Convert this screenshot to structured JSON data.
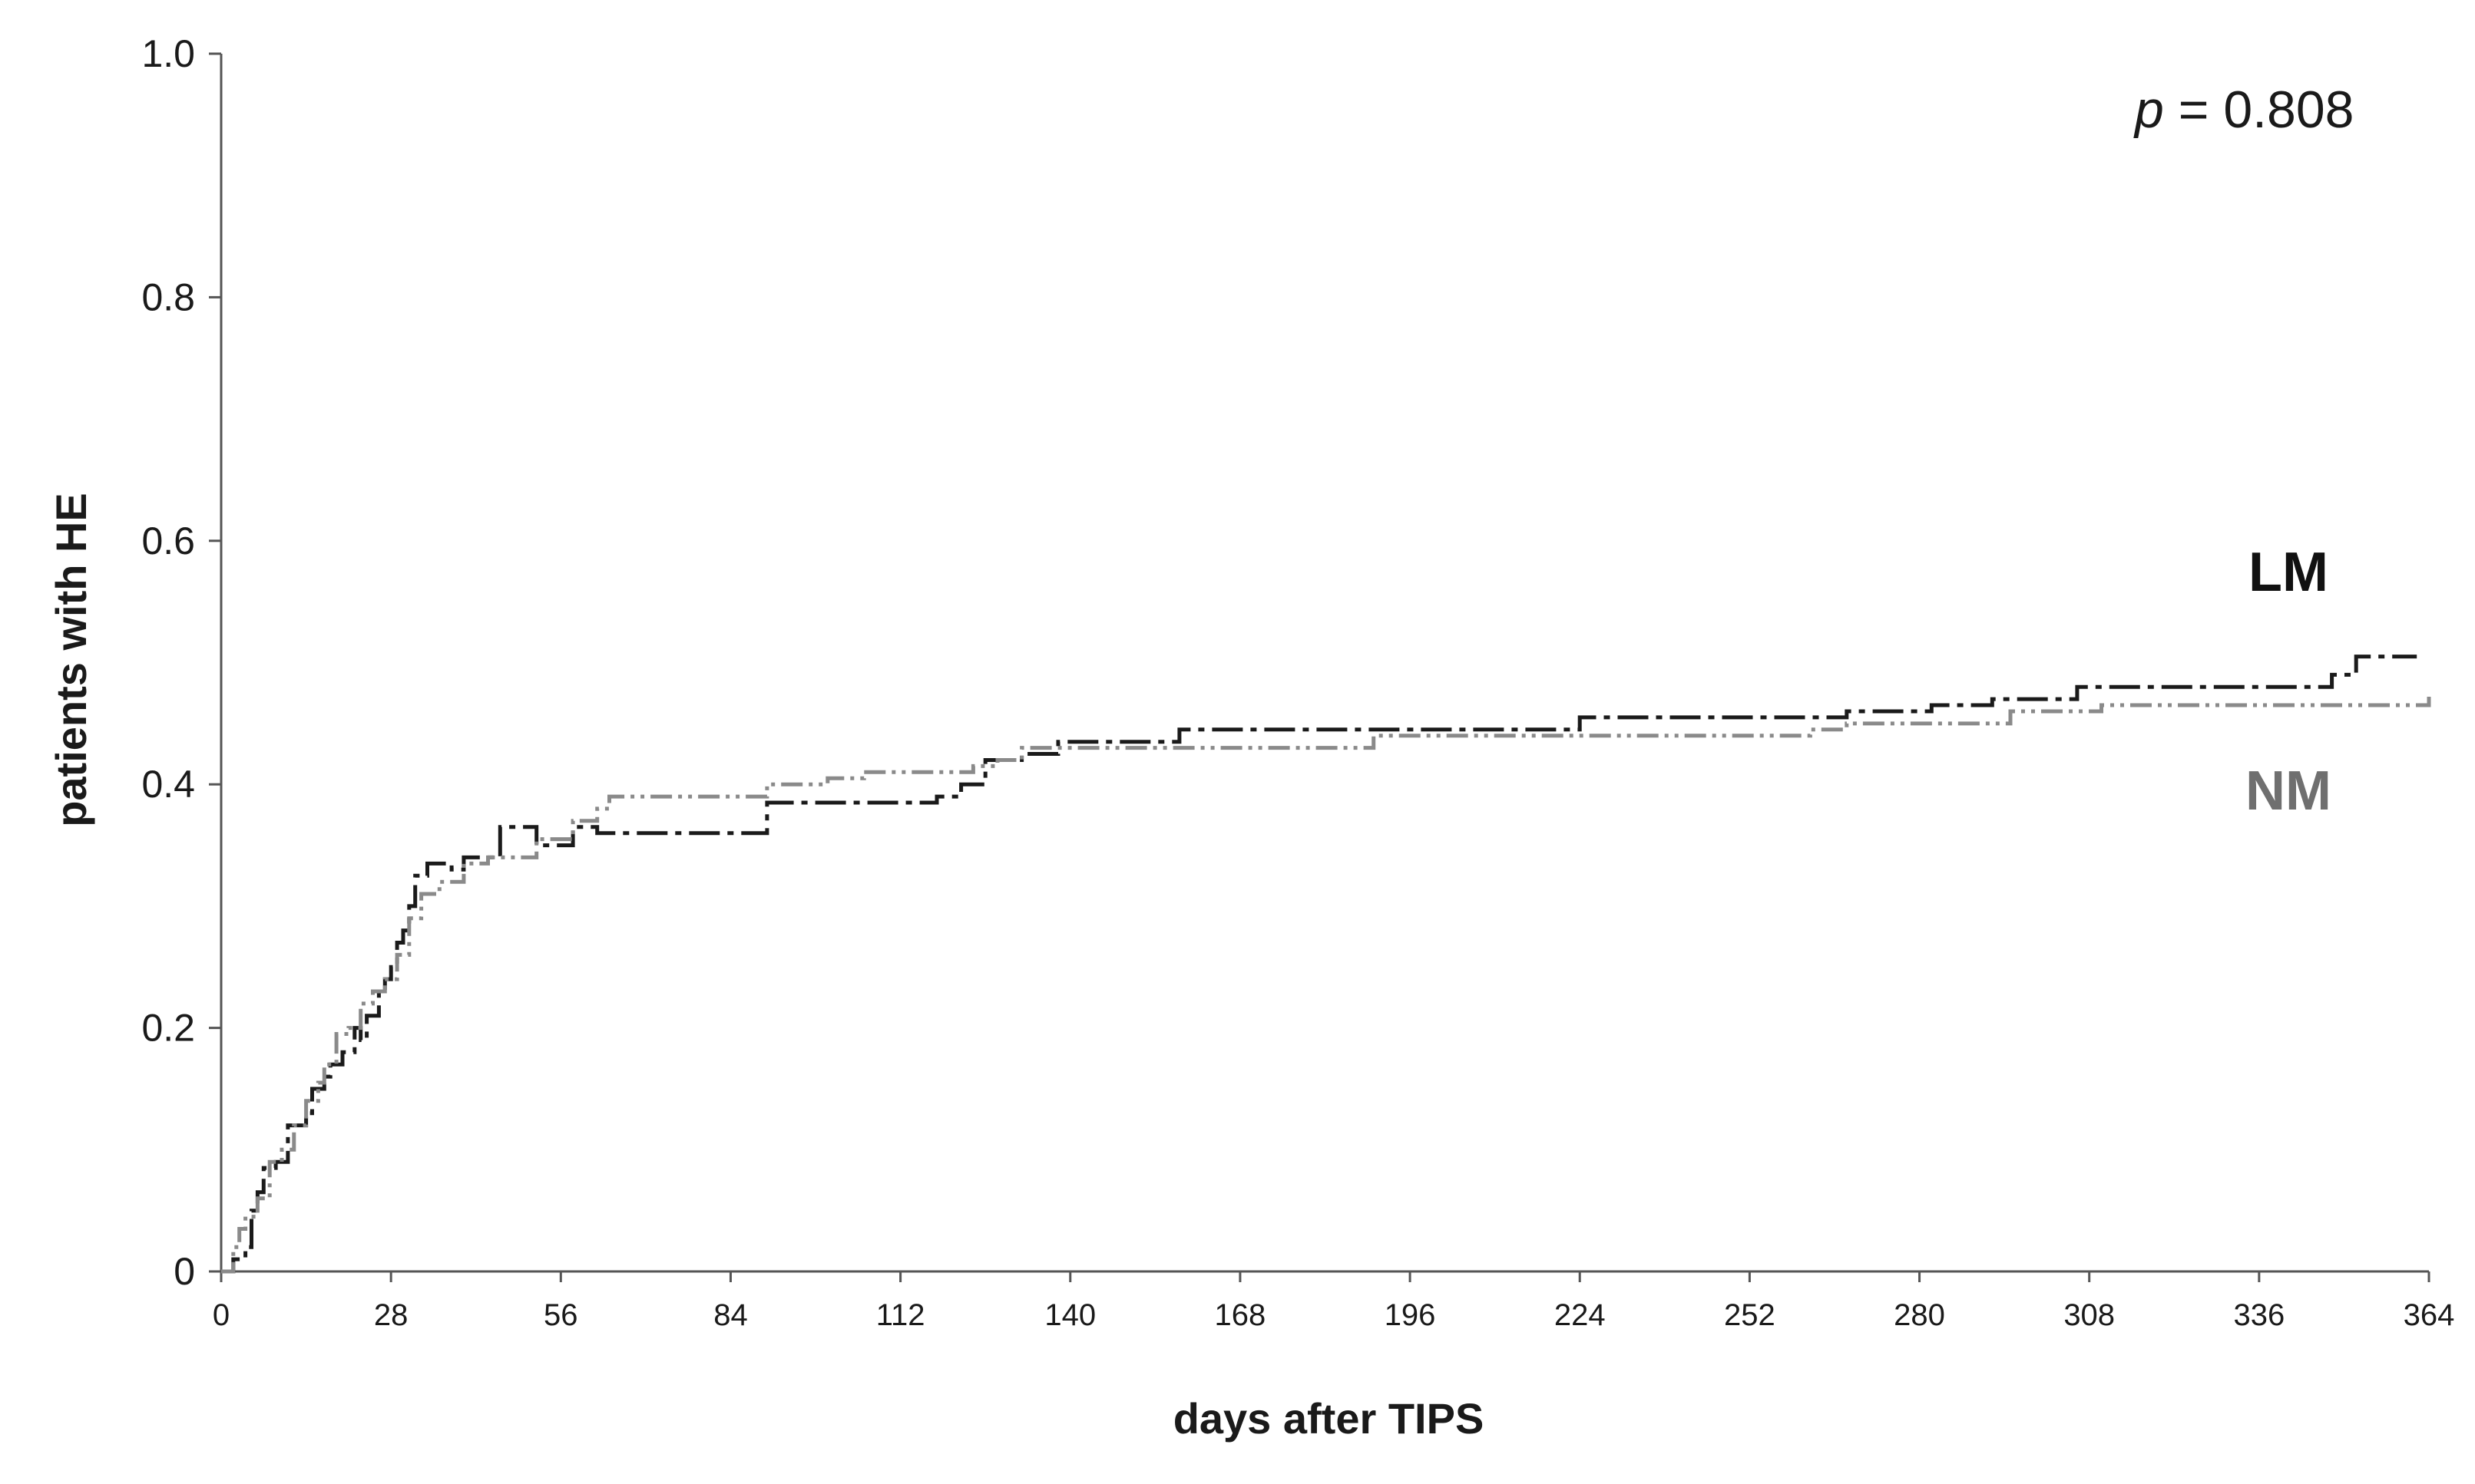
{
  "chart_data": {
    "type": "line",
    "title": "",
    "xlabel": "days after TIPS",
    "ylabel": "patients with HE",
    "xlim": [
      0,
      364
    ],
    "ylim": [
      0,
      1.0
    ],
    "x_ticks": [
      "0",
      "28",
      "56",
      "84",
      "112",
      "140",
      "168",
      "196",
      "224",
      "252",
      "280",
      "308",
      "336",
      "364"
    ],
    "y_ticks": [
      "0",
      "0.2",
      "0.4",
      "0.6",
      "0.8",
      "1.0"
    ],
    "annotation": {
      "italic": "p",
      "rest": " = 0.808"
    },
    "step": true,
    "grid": false,
    "series": [
      {
        "name": "LM",
        "color": "#1a1a1a",
        "line_style": "dash-dot",
        "x": [
          0,
          2,
          4,
          5,
          6,
          7,
          9,
          11,
          12,
          14,
          15,
          17,
          18,
          20,
          22,
          23,
          24,
          26,
          27,
          28,
          29,
          30,
          31,
          32,
          34,
          38,
          40,
          46,
          52,
          58,
          62,
          66,
          72,
          80,
          90,
          104,
          118,
          122,
          126,
          132,
          138,
          150,
          158,
          180,
          210,
          224,
          240,
          268,
          282,
          292,
          300,
          306,
          320,
          335,
          348,
          352,
          362
        ],
        "y": [
          0,
          0.01,
          0.02,
          0.05,
          0.065,
          0.085,
          0.09,
          0.12,
          0.12,
          0.13,
          0.15,
          0.16,
          0.17,
          0.18,
          0.2,
          0.19,
          0.21,
          0.23,
          0.24,
          0.25,
          0.27,
          0.28,
          0.3,
          0.325,
          0.335,
          0.33,
          0.34,
          0.365,
          0.35,
          0.365,
          0.36,
          0.36,
          0.36,
          0.36,
          0.385,
          0.385,
          0.39,
          0.4,
          0.42,
          0.425,
          0.435,
          0.435,
          0.445,
          0.445,
          0.445,
          0.455,
          0.455,
          0.46,
          0.465,
          0.47,
          0.47,
          0.48,
          0.48,
          0.48,
          0.49,
          0.505,
          0.505
        ]
      },
      {
        "name": "NM",
        "color": "#8a8a8a",
        "line_style": "dash-dot-dot",
        "x": [
          0,
          2,
          3,
          4,
          6,
          8,
          10,
          12,
          14,
          16,
          17,
          19,
          21,
          23,
          25,
          27,
          29,
          31,
          33,
          36,
          40,
          44,
          52,
          58,
          62,
          64,
          70,
          90,
          100,
          106,
          124,
          128,
          132,
          140,
          150,
          170,
          190,
          200,
          230,
          262,
          268,
          295,
          310,
          340,
          364
        ],
        "y": [
          0,
          0.02,
          0.035,
          0.045,
          0.06,
          0.09,
          0.1,
          0.12,
          0.14,
          0.155,
          0.17,
          0.195,
          0.2,
          0.22,
          0.23,
          0.24,
          0.26,
          0.29,
          0.31,
          0.32,
          0.335,
          0.34,
          0.355,
          0.37,
          0.38,
          0.39,
          0.39,
          0.4,
          0.405,
          0.41,
          0.415,
          0.42,
          0.43,
          0.43,
          0.43,
          0.43,
          0.44,
          0.44,
          0.44,
          0.445,
          0.45,
          0.46,
          0.465,
          0.465,
          0.475
        ]
      }
    ]
  }
}
